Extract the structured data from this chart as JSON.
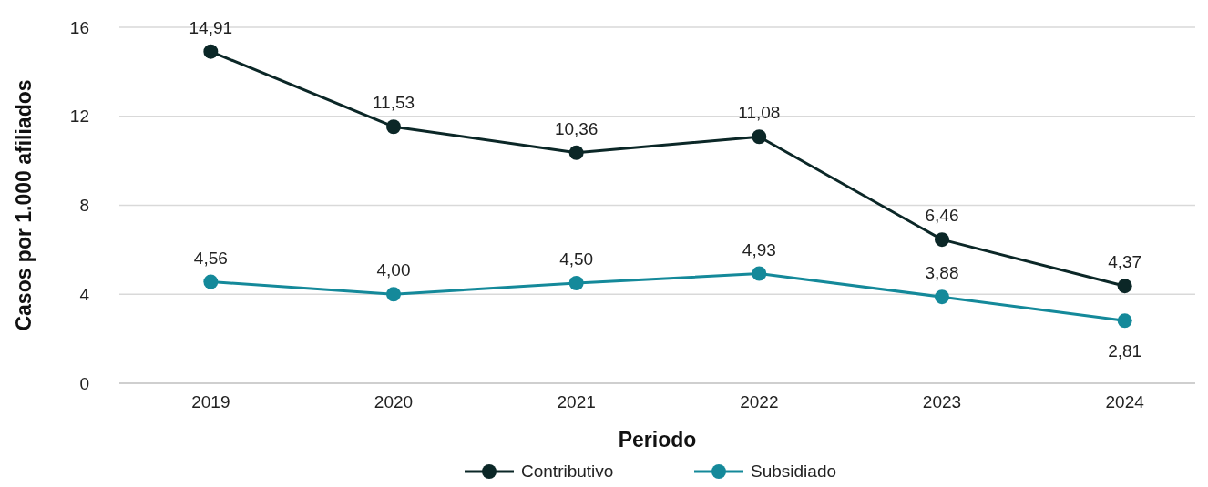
{
  "chart_data": {
    "type": "line",
    "xlabel": "Periodo",
    "ylabel": "Casos por 1.000 afiliados",
    "categories": [
      "2019",
      "2020",
      "2021",
      "2022",
      "2023",
      "2024"
    ],
    "series": [
      {
        "name": "Contributivo",
        "color": "#0b2727",
        "values": [
          14.91,
          11.53,
          10.36,
          11.08,
          6.46,
          4.37
        ],
        "value_labels": [
          "14,91",
          "11,53",
          "10,36",
          "11,08",
          "6,46",
          "4,37"
        ]
      },
      {
        "name": "Subsidiado",
        "color": "#14899a",
        "values": [
          4.56,
          4.0,
          4.5,
          4.93,
          3.88,
          2.81
        ],
        "value_labels": [
          "4,56",
          "4,00",
          "4,50",
          "4,93",
          "3,88",
          "2,81"
        ]
      }
    ],
    "ylim": [
      0,
      16
    ],
    "yticks": [
      0,
      4,
      8,
      12,
      16
    ],
    "grid": "y",
    "legend": "bottom",
    "marker": "circle",
    "line_style": "solid"
  }
}
